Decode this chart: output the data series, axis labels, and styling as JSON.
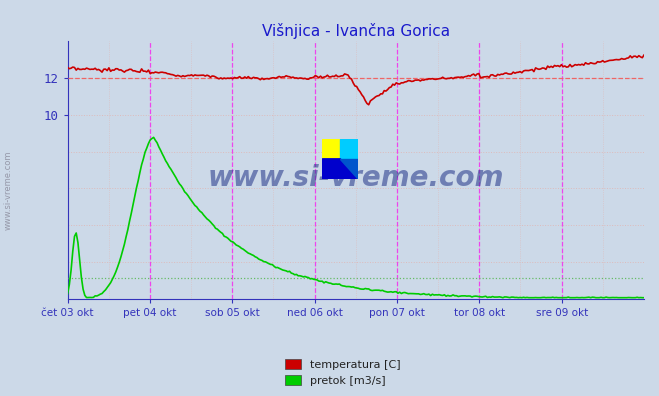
{
  "title": "Višnjica - Ivančna Gorica",
  "title_color": "#1a1acc",
  "bg_color": "#ccd9e8",
  "plot_bg_color": "#ccd9e8",
  "xlabel_ticks": [
    "čet 03 okt",
    "pet 04 okt",
    "sob 05 okt",
    "ned 06 okt",
    "pon 07 okt",
    "tor 08 okt",
    "sre 09 okt"
  ],
  "temp_color": "#cc0000",
  "flow_color": "#00cc00",
  "temp_ref_y": 12.0,
  "flow_ref_y": 1.1,
  "temp_ref_color": "#ee6666",
  "flow_ref_color": "#66bb66",
  "vline_color": "#ee44ee",
  "hgrid_color": "#ddbbbb",
  "vgrid_color": "#ddbbbb",
  "spine_color": "#3333bb",
  "arrow_color": "#cc0000",
  "watermark_text": "www.si-vreme.com",
  "watermark_color": "#223388",
  "side_text": "www.si-vreme.com",
  "side_color": "#888899",
  "legend_labels": [
    "temperatura [C]",
    "pretok [m3/s]"
  ],
  "legend_colors": [
    "#cc0000",
    "#00cc00"
  ],
  "ytick_labels": [
    "10",
    "12"
  ],
  "ytick_vals": [
    10,
    12
  ],
  "ylim": [
    0,
    14.0
  ],
  "xlim": [
    0,
    7
  ],
  "n_days": 7,
  "n_points": 336
}
